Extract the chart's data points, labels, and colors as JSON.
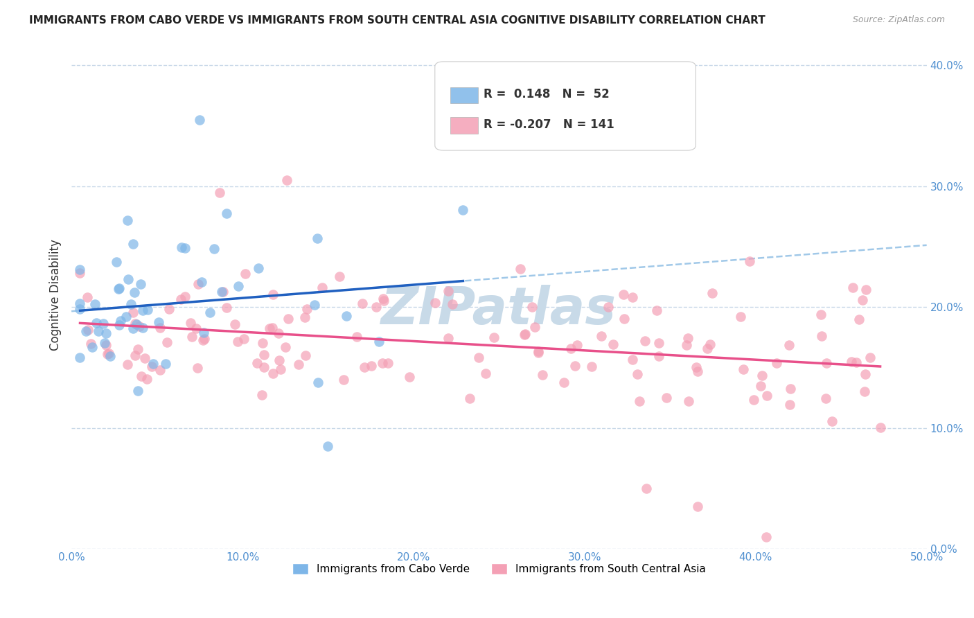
{
  "title": "IMMIGRANTS FROM CABO VERDE VS IMMIGRANTS FROM SOUTH CENTRAL ASIA COGNITIVE DISABILITY CORRELATION CHART",
  "source": "Source: ZipAtlas.com",
  "ylabel": "Cognitive Disability",
  "x_ticks": [
    0.0,
    0.1,
    0.2,
    0.3,
    0.4,
    0.5
  ],
  "x_tick_labels": [
    "0.0%",
    "10.0%",
    "20.0%",
    "30.0%",
    "40.0%",
    "50.0%"
  ],
  "y_ticks": [
    0.0,
    0.1,
    0.2,
    0.3,
    0.4
  ],
  "y_tick_labels": [
    "0.0%",
    "10.0%",
    "20.0%",
    "30.0%",
    "40.0%"
  ],
  "xlim": [
    0.0,
    0.5
  ],
  "ylim": [
    0.0,
    0.42
  ],
  "blue_R": 0.148,
  "blue_N": 52,
  "pink_R": -0.207,
  "pink_N": 141,
  "blue_color": "#7eb6e8",
  "pink_color": "#f4a0b5",
  "blue_line_color": "#2060c0",
  "pink_line_color": "#e8508a",
  "dashed_line_color": "#a0c8e8",
  "axis_label_color": "#5090d0",
  "grid_color": "#c8d8e8",
  "background_color": "#ffffff",
  "watermark_text": "ZIPatlas",
  "watermark_color": "#c8dae8",
  "legend_label_blue": "Immigrants from Cabo Verde",
  "legend_label_pink": "Immigrants from South Central Asia"
}
